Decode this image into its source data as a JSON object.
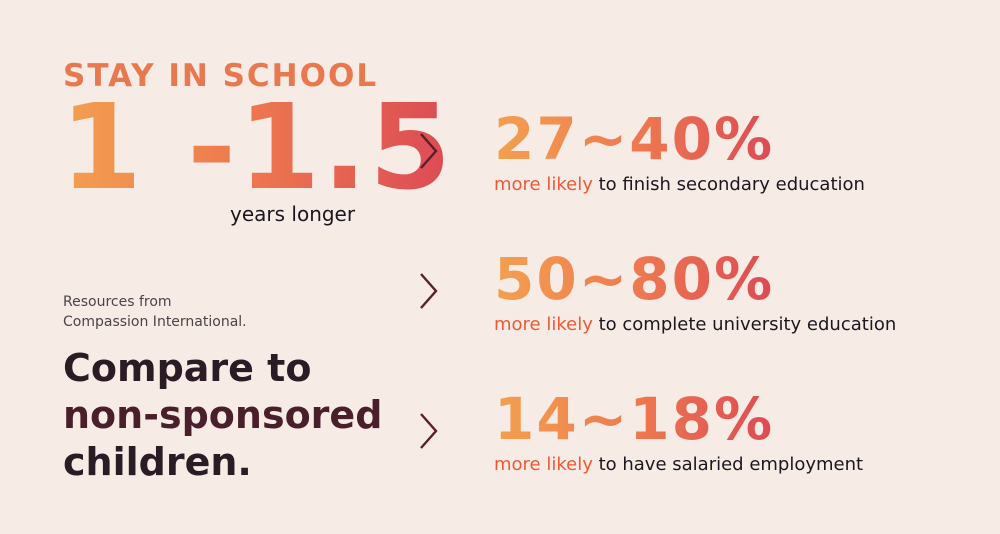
{
  "header": {
    "eyebrow": "STAY IN SCHOOL",
    "big_range": "1 -1.5",
    "years_caption": "years longer"
  },
  "source": {
    "line1": "Resources from",
    "line2": "Compassion International."
  },
  "compare": {
    "line1": "Compare to",
    "line2": "non-sponsored",
    "line3": "children."
  },
  "stats": [
    {
      "value": "27~40%",
      "accent": "more likely",
      "rest": " to finish secondary education"
    },
    {
      "value": "50~80%",
      "accent": "more likely",
      "rest": " to complete university education"
    },
    {
      "value": "14~18%",
      "accent": "more likely",
      "rest": " to have salaried employment"
    }
  ],
  "icons": {
    "arrow": "chevron-right-icon"
  },
  "colors": {
    "background": "#f6ebe5",
    "gradient_start": "#f3a04f",
    "gradient_end": "#dc4a55",
    "accent_text": "#ee5a34",
    "dark_text": "#1b1720"
  }
}
